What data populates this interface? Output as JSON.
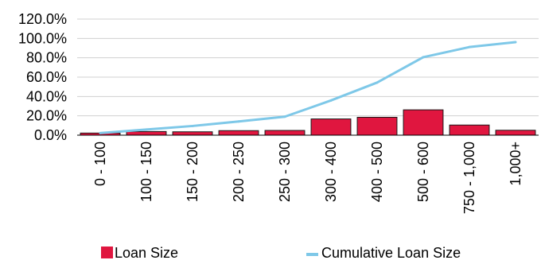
{
  "chart_data": {
    "type": "bar",
    "title": "",
    "xlabel": "",
    "ylabel": "",
    "ylim": [
      0,
      120
    ],
    "y_ticks": [
      "0.0%",
      "20.0%",
      "40.0%",
      "60.0%",
      "80.0%",
      "100.0%",
      "120.0%"
    ],
    "y_tick_values": [
      0,
      20,
      40,
      60,
      80,
      100,
      120
    ],
    "grid": true,
    "legend_position": "bottom",
    "categories": [
      "0 - 100",
      "100 - 150",
      "150 - 200",
      "200 - 250",
      "250 - 300",
      "300 - 400",
      "400 - 500",
      "500 - 600",
      "750 - 1,000",
      "1,000+"
    ],
    "series": [
      {
        "name": "Loan Size",
        "type": "bar",
        "color": "#e0163f",
        "values": [
          2.2,
          3.8,
          3.5,
          4.7,
          4.9,
          16.8,
          18.5,
          26.2,
          10.5,
          5.1
        ]
      },
      {
        "name": "Cumulative Loan Size",
        "type": "line",
        "color": "#7ec8e8",
        "values": [
          2.2,
          5.9,
          9.5,
          14.2,
          19.1,
          35.9,
          54.4,
          80.6,
          91.1,
          96.2
        ]
      }
    ]
  }
}
